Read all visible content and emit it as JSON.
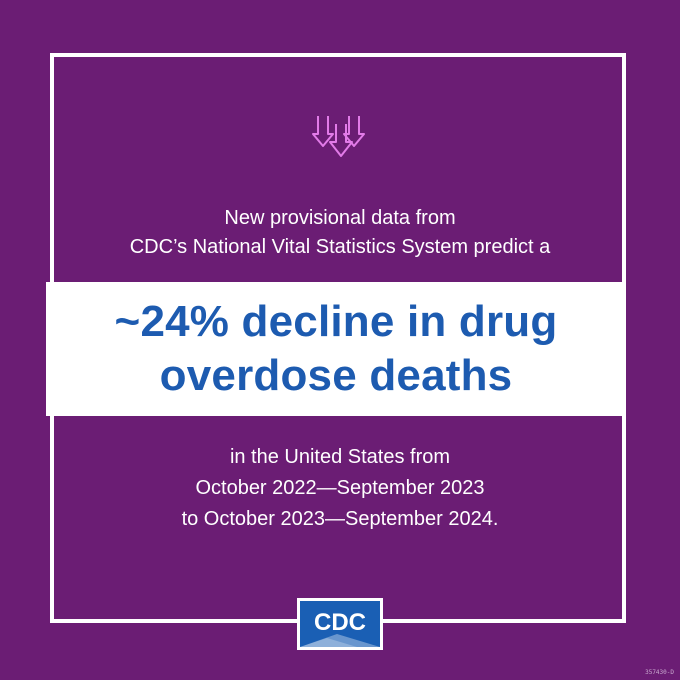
{
  "icon": {
    "name": "down-arrows-icon",
    "color": "#e27be8"
  },
  "intro": {
    "line1": "New provisional data from",
    "line2": "CDC’s National Vital Statistics System predict a"
  },
  "headline": {
    "line1": "~24% decline in drug",
    "line2": "overdose deaths"
  },
  "outro": {
    "line1": "in the United States from",
    "line2": "October 2022—September 2023",
    "line3": "to October 2023—September 2024."
  },
  "logo": {
    "text": "CDC",
    "color": "#1a5fb4"
  },
  "code": "357430-D",
  "colors": {
    "background": "#6b1d74",
    "frame": "#ffffff",
    "headline": "#1d5bb0"
  }
}
